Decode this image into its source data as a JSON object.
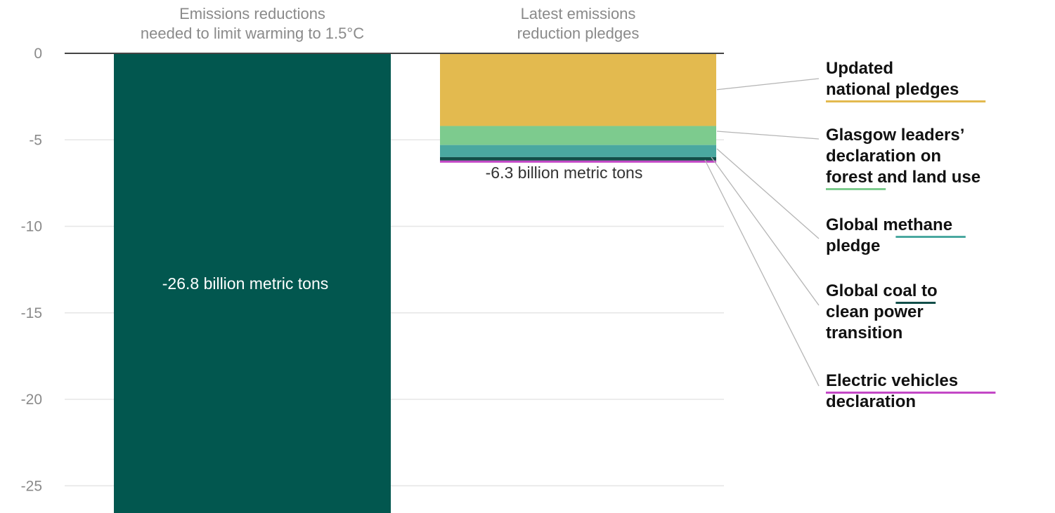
{
  "chart_data": {
    "type": "bar",
    "categories": [
      "Emissions reductions needed to limit warming to 1.5°C",
      "Latest emissions reduction pledges"
    ],
    "category_title_lines": [
      [
        "Emissions reductions",
        "needed to limit warming to 1.5°C"
      ],
      [
        "Latest emissions",
        "reduction pledges"
      ]
    ],
    "ylim": [
      -26.8,
      0
    ],
    "y_ticks": [
      0,
      -5,
      -10,
      -15,
      -20,
      -25
    ],
    "y_tick_labels": [
      "0",
      "-5",
      "-10",
      "-15",
      "-20",
      "-25"
    ],
    "grid": true,
    "bars": [
      {
        "category": "Emissions reductions needed to limit warming to 1.5°C",
        "value": -26.8,
        "color": "#02574f",
        "label": "-26.8 billion metric tons"
      },
      {
        "category": "Latest emissions reduction pledges",
        "label": "-6.3 billion metric tons",
        "total": -6.3,
        "segments": [
          {
            "name": "Updated national pledges",
            "name_lines": [
              "Updated",
              "national pledges"
            ],
            "value": -4.2,
            "color": "#e3ba4f"
          },
          {
            "name": "Glasgow leaders’ declaration on forest and land use",
            "name_lines": [
              "Glasgow leaders’",
              "declaration on",
              "forest and land use"
            ],
            "value": -1.1,
            "color": "#7dcb8e"
          },
          {
            "name": "Global methane pledge",
            "name_lines": [
              "Global methane",
              "pledge"
            ],
            "value": -0.7,
            "color": "#4aa8a0"
          },
          {
            "name": "Global coal to clean power transition",
            "name_lines": [
              "Global coal to",
              "clean power",
              "transition"
            ],
            "value": -0.2,
            "color": "#124e49"
          },
          {
            "name": "Electric vehicles declaration",
            "name_lines": [
              "Electric vehicles",
              "declaration"
            ],
            "value": -0.1,
            "color": "#c347c6"
          }
        ]
      }
    ]
  }
}
